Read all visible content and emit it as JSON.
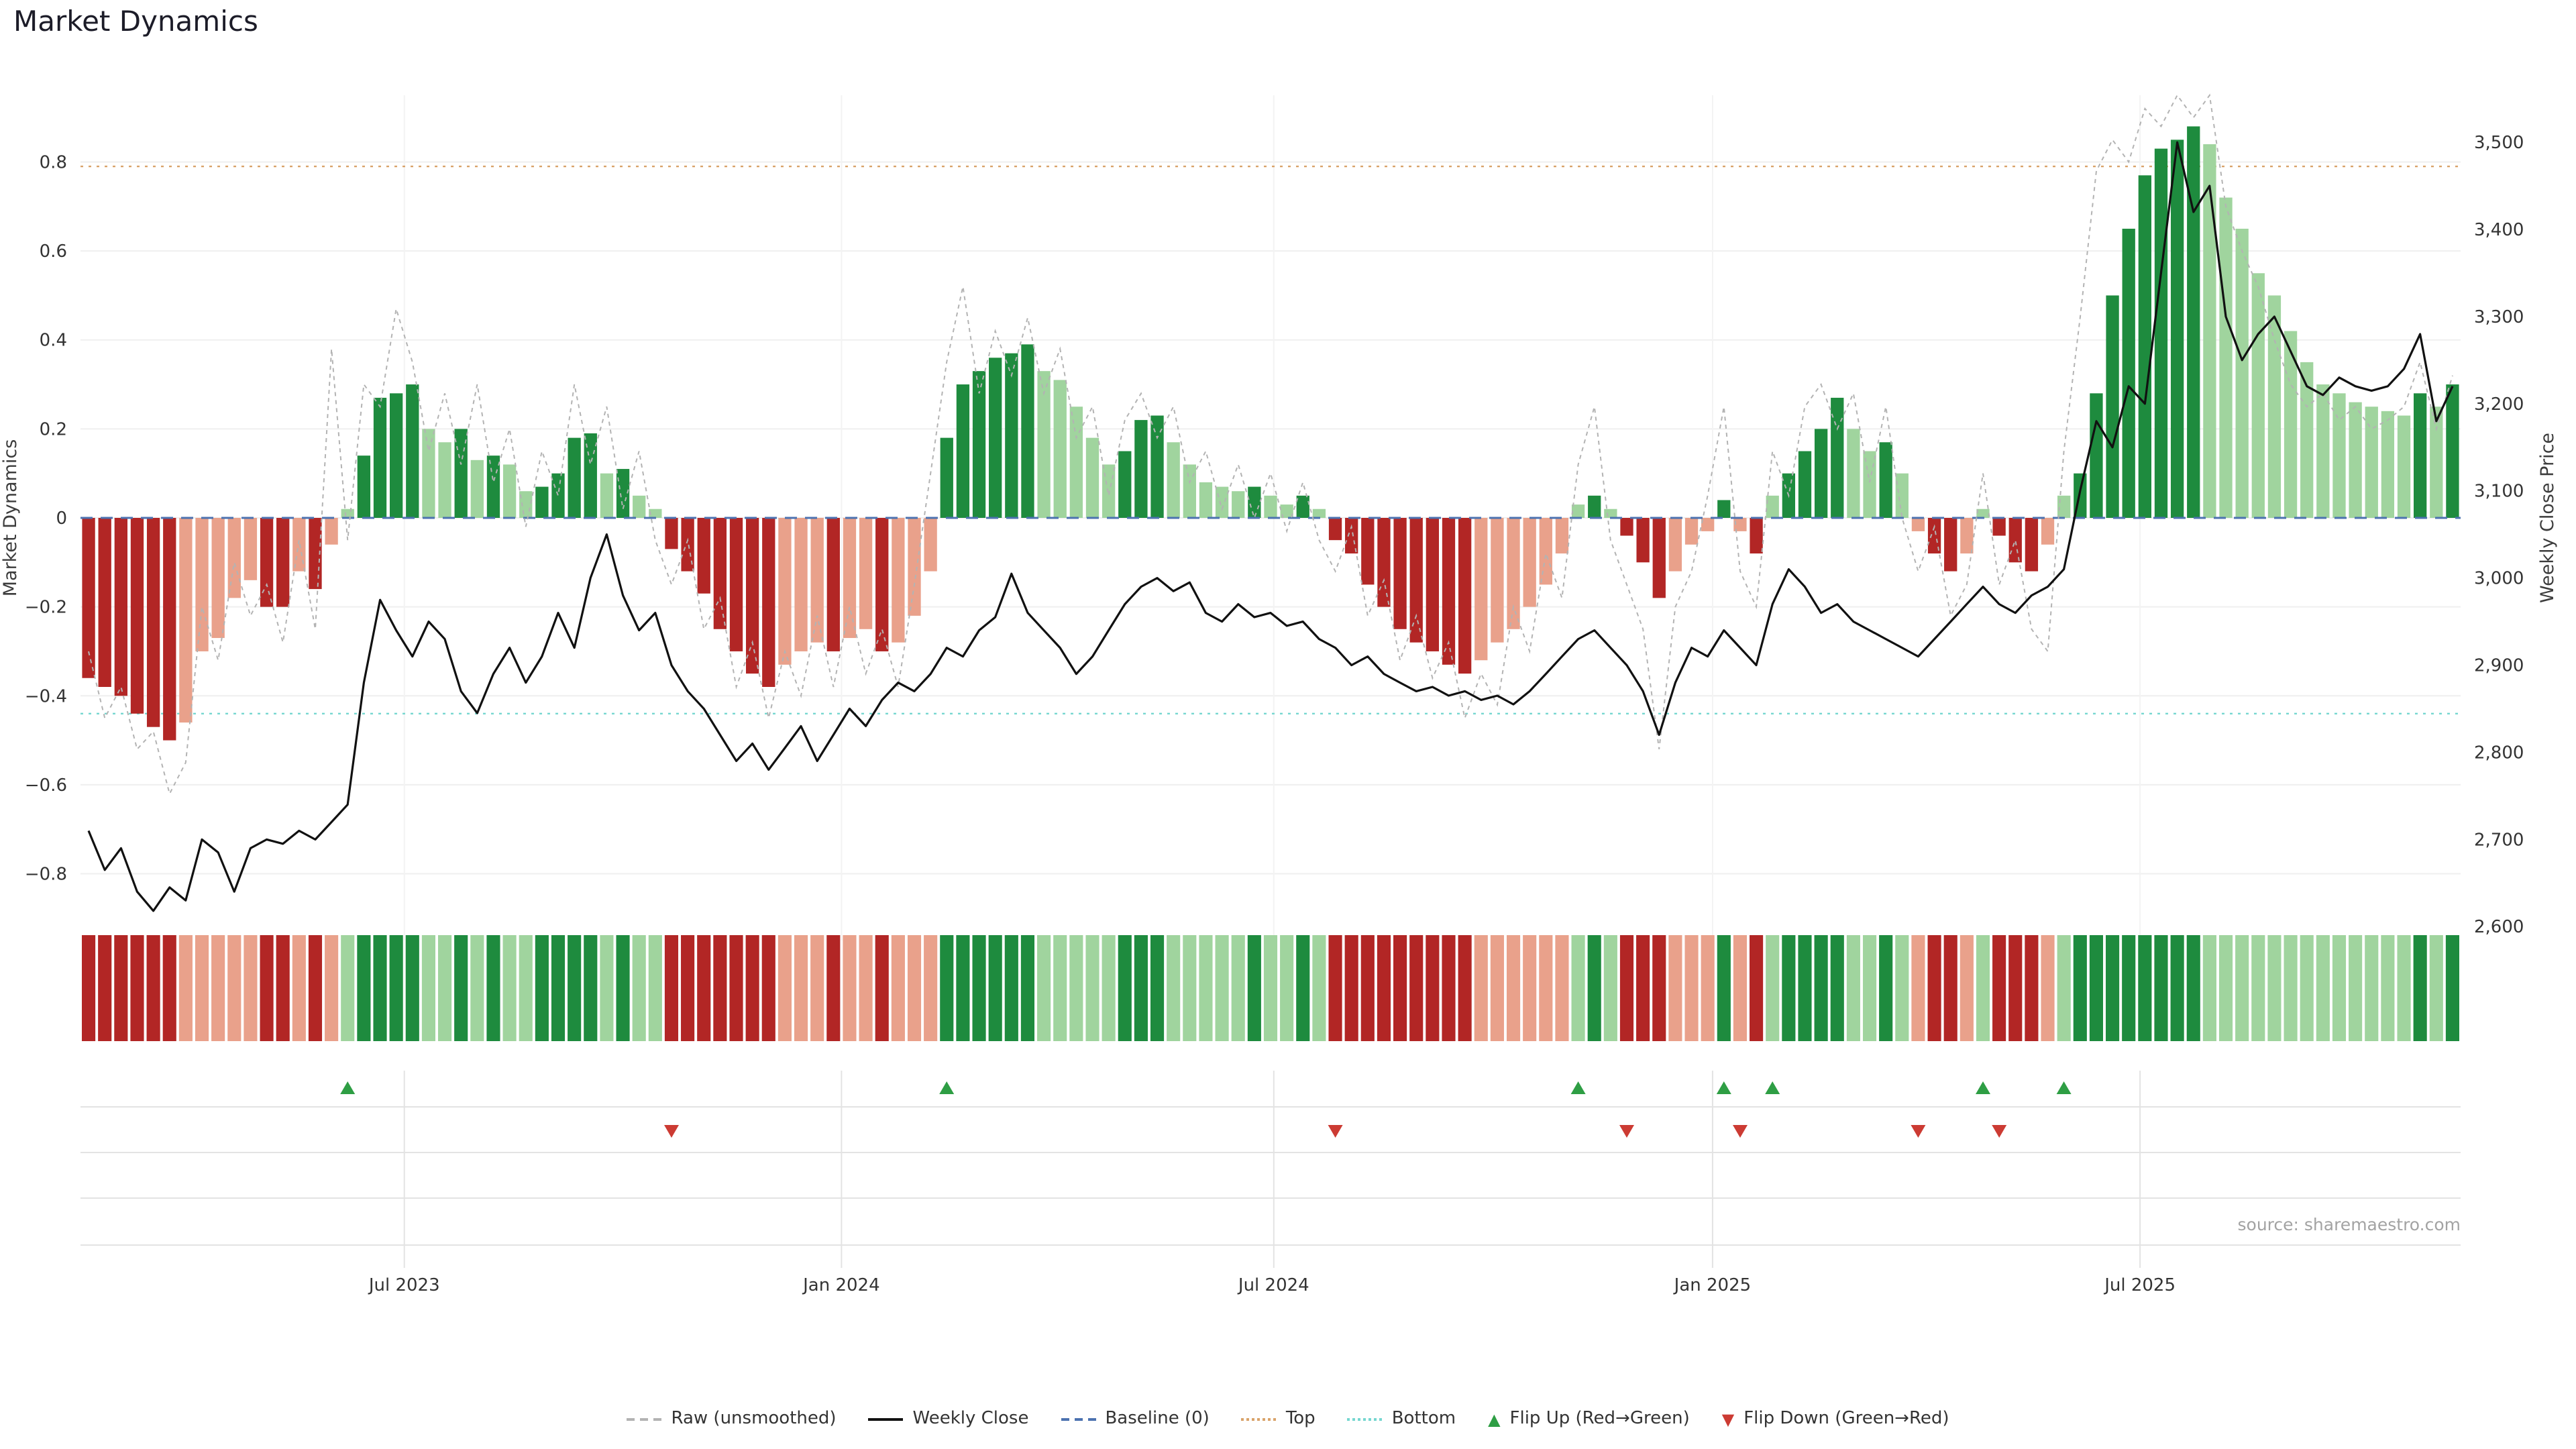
{
  "chart_data": {
    "type": "bar",
    "subtype": "combo_bar_line_heatmap",
    "title": "Market Dynamics",
    "source": "source: sharemaestro.com",
    "left_axis": {
      "label": "Market Dynamics",
      "range": [
        -0.95,
        0.95
      ],
      "ticks": [
        {
          "v": 0.8,
          "label": "0.8"
        },
        {
          "v": 0.6,
          "label": "0.6"
        },
        {
          "v": 0.4,
          "label": "0.4"
        },
        {
          "v": 0.2,
          "label": "0.2"
        },
        {
          "v": 0,
          "label": "0"
        },
        {
          "v": -0.2,
          "label": "−0.2"
        },
        {
          "v": -0.4,
          "label": "−0.4"
        },
        {
          "v": -0.6,
          "label": "−0.6"
        },
        {
          "v": -0.8,
          "label": "−0.8"
        }
      ]
    },
    "right_axis": {
      "label": "Weekly Close Price",
      "range": [
        2584,
        3554
      ],
      "ticks": [
        {
          "v": 3500,
          "label": "3,500"
        },
        {
          "v": 3400,
          "label": "3,400"
        },
        {
          "v": 3300,
          "label": "3,300"
        },
        {
          "v": 3200,
          "label": "3,200"
        },
        {
          "v": 3100,
          "label": "3,100"
        },
        {
          "v": 3000,
          "label": "3,000"
        },
        {
          "v": 2900,
          "label": "2,900"
        },
        {
          "v": 2800,
          "label": "2,800"
        },
        {
          "v": 2700,
          "label": "2,700"
        },
        {
          "v": 2600,
          "label": "2,600"
        }
      ]
    },
    "x_axis": {
      "unit": "weeks",
      "ticks": [
        {
          "pos": 19.5,
          "label": "Jul 2023"
        },
        {
          "pos": 46.5,
          "label": "Jan 2024"
        },
        {
          "pos": 73.2,
          "label": "Jul 2024"
        },
        {
          "pos": 100.3,
          "label": "Jan 2025"
        },
        {
          "pos": 126.7,
          "label": "Jul 2025"
        }
      ]
    },
    "thresholds": {
      "top": 0.79,
      "bottom": -0.44,
      "baseline": 0
    },
    "series": {
      "dynamics_bars": [
        -0.36,
        -0.38,
        -0.4,
        -0.44,
        -0.47,
        -0.5,
        -0.46,
        -0.3,
        -0.27,
        -0.18,
        -0.14,
        -0.2,
        -0.2,
        -0.12,
        -0.16,
        -0.06,
        0.02,
        0.14,
        0.27,
        0.28,
        0.3,
        0.2,
        0.17,
        0.2,
        0.13,
        0.14,
        0.12,
        0.06,
        0.07,
        0.1,
        0.18,
        0.19,
        0.1,
        0.11,
        0.05,
        0.02,
        -0.07,
        -0.12,
        -0.17,
        -0.25,
        -0.3,
        -0.35,
        -0.38,
        -0.33,
        -0.3,
        -0.28,
        -0.3,
        -0.27,
        -0.25,
        -0.3,
        -0.28,
        -0.22,
        -0.12,
        0.18,
        0.3,
        0.33,
        0.36,
        0.37,
        0.39,
        0.33,
        0.31,
        0.25,
        0.18,
        0.12,
        0.15,
        0.22,
        0.23,
        0.17,
        0.12,
        0.08,
        0.07,
        0.06,
        0.07,
        0.05,
        0.03,
        0.05,
        0.02,
        -0.05,
        -0.08,
        -0.15,
        -0.2,
        -0.25,
        -0.28,
        -0.3,
        -0.33,
        -0.35,
        -0.32,
        -0.28,
        -0.25,
        -0.2,
        -0.15,
        -0.08,
        0.03,
        0.05,
        0.02,
        -0.04,
        -0.1,
        -0.18,
        -0.12,
        -0.06,
        -0.03,
        0.04,
        -0.03,
        -0.08,
        0.05,
        0.1,
        0.15,
        0.2,
        0.27,
        0.2,
        0.15,
        0.17,
        0.1,
        -0.03,
        -0.08,
        -0.12,
        -0.08,
        0.02,
        -0.04,
        -0.1,
        -0.12,
        -0.06,
        0.05,
        0.1,
        0.28,
        0.5,
        0.65,
        0.77,
        0.83,
        0.85,
        0.88,
        0.84,
        0.72,
        0.65,
        0.55,
        0.5,
        0.42,
        0.35,
        0.3,
        0.28,
        0.26,
        0.25,
        0.24,
        0.23,
        0.28,
        0.25,
        0.3
      ],
      "raw_unsmoothed": [
        -0.3,
        -0.45,
        -0.38,
        -0.52,
        -0.48,
        -0.62,
        -0.55,
        -0.2,
        -0.32,
        -0.1,
        -0.22,
        -0.15,
        -0.28,
        -0.05,
        -0.25,
        0.38,
        -0.05,
        0.3,
        0.25,
        0.47,
        0.35,
        0.15,
        0.28,
        0.12,
        0.3,
        0.08,
        0.2,
        -0.02,
        0.15,
        0.05,
        0.3,
        0.12,
        0.25,
        0.02,
        0.15,
        -0.05,
        -0.15,
        -0.05,
        -0.25,
        -0.18,
        -0.38,
        -0.28,
        -0.45,
        -0.3,
        -0.4,
        -0.22,
        -0.38,
        -0.2,
        -0.35,
        -0.25,
        -0.38,
        -0.15,
        0.1,
        0.35,
        0.52,
        0.28,
        0.42,
        0.32,
        0.45,
        0.28,
        0.38,
        0.18,
        0.25,
        0.05,
        0.22,
        0.28,
        0.18,
        0.25,
        0.08,
        0.15,
        0.02,
        0.12,
        0.0,
        0.1,
        -0.03,
        0.08,
        -0.05,
        -0.12,
        -0.02,
        -0.22,
        -0.14,
        -0.32,
        -0.22,
        -0.36,
        -0.28,
        -0.45,
        -0.35,
        -0.42,
        -0.2,
        -0.3,
        -0.08,
        -0.18,
        0.12,
        0.25,
        -0.05,
        -0.15,
        -0.25,
        -0.52,
        -0.2,
        -0.12,
        0.05,
        0.25,
        -0.12,
        -0.2,
        0.15,
        0.05,
        0.25,
        0.3,
        0.2,
        0.28,
        0.08,
        0.25,
        0.0,
        -0.12,
        -0.02,
        -0.22,
        -0.15,
        0.1,
        -0.15,
        -0.05,
        -0.25,
        -0.3,
        0.15,
        0.45,
        0.78,
        0.85,
        0.8,
        0.92,
        0.88,
        0.95,
        0.9,
        0.95,
        0.7,
        0.6,
        0.52,
        0.4,
        0.3,
        0.25,
        0.28,
        0.22,
        0.25,
        0.2,
        0.22,
        0.25,
        0.35,
        0.2,
        0.32
      ],
      "weekly_close": [
        2710,
        2665,
        2690,
        2640,
        2618,
        2645,
        2630,
        2700,
        2685,
        2640,
        2690,
        2700,
        2695,
        2710,
        2700,
        2720,
        2740,
        2880,
        2975,
        2940,
        2910,
        2950,
        2930,
        2870,
        2845,
        2890,
        2920,
        2880,
        2910,
        2960,
        2920,
        3000,
        3050,
        2980,
        2940,
        2960,
        2900,
        2870,
        2850,
        2820,
        2790,
        2810,
        2780,
        2805,
        2830,
        2790,
        2820,
        2850,
        2830,
        2860,
        2880,
        2870,
        2890,
        2920,
        2910,
        2940,
        2955,
        3005,
        2960,
        2940,
        2920,
        2890,
        2910,
        2940,
        2970,
        2990,
        3000,
        2985,
        2995,
        2960,
        2950,
        2970,
        2955,
        2960,
        2945,
        2950,
        2930,
        2920,
        2900,
        2910,
        2890,
        2880,
        2870,
        2875,
        2865,
        2870,
        2860,
        2865,
        2855,
        2870,
        2890,
        2910,
        2930,
        2940,
        2920,
        2900,
        2870,
        2820,
        2880,
        2920,
        2910,
        2940,
        2920,
        2900,
        2970,
        3010,
        2990,
        2960,
        2970,
        2950,
        2940,
        2930,
        2920,
        2910,
        2930,
        2950,
        2970,
        2990,
        2970,
        2960,
        2980,
        2990,
        3010,
        3100,
        3180,
        3150,
        3220,
        3200,
        3350,
        3500,
        3420,
        3450,
        3300,
        3250,
        3280,
        3300,
        3260,
        3220,
        3210,
        3230,
        3220,
        3215,
        3220,
        3240,
        3280,
        3180,
        3220
      ]
    },
    "flip_up_indices": [
      16,
      53,
      92,
      101,
      104,
      117,
      122
    ],
    "flip_down_indices": [
      36,
      77,
      95,
      102,
      113,
      118
    ],
    "colors": {
      "bar_green_dark": "#1e8b3e",
      "bar_green_light": "#a0d49e",
      "bar_red_dark": "#b22625",
      "bar_red_light": "#e9a18b",
      "line_price": "#111111",
      "line_raw": "#b3b3b3",
      "baseline": "#4c72b0",
      "top_line": "#d9a36a",
      "bottom_line": "#76d7d0",
      "flip_up": "#2e9e44",
      "flip_down": "#cc3b33"
    },
    "legend": [
      {
        "label": "Raw (unsmoothed)",
        "swatch": "line",
        "style": "dashed",
        "color": "#b3b3b3"
      },
      {
        "label": "Weekly Close",
        "swatch": "line",
        "style": "solid",
        "color": "#111111"
      },
      {
        "label": "Baseline (0)",
        "swatch": "line",
        "style": "dashed",
        "color": "#4c72b0"
      },
      {
        "label": "Top",
        "swatch": "line",
        "style": "dotted",
        "color": "#d9a36a"
      },
      {
        "label": "Bottom",
        "swatch": "line",
        "style": "dotted",
        "color": "#76d7d0"
      },
      {
        "label": "Flip Up (Red→Green)",
        "swatch": "triangle-up",
        "color": "#2e9e44"
      },
      {
        "label": "Flip Down (Green→Red)",
        "swatch": "triangle-down",
        "color": "#cc3b33"
      }
    ]
  }
}
